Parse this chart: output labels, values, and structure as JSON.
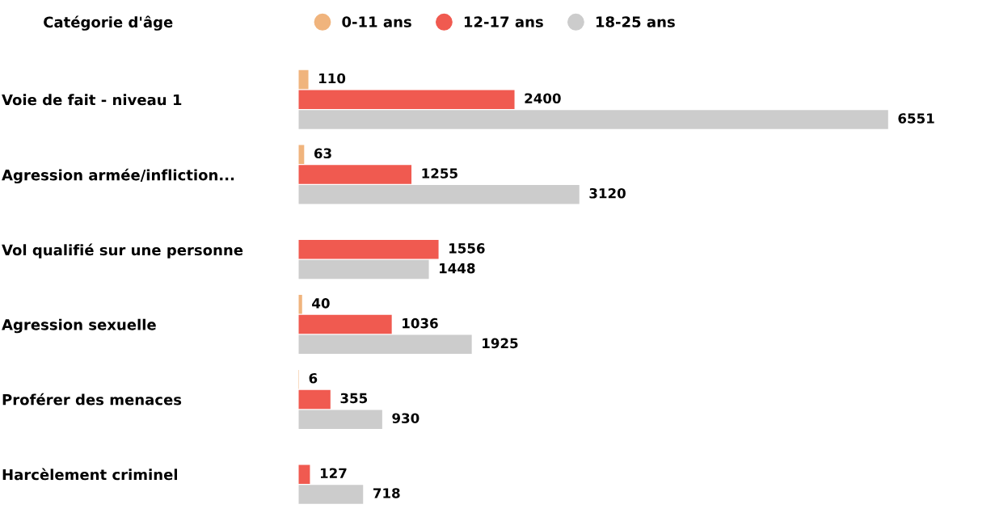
{
  "chart_data": {
    "type": "bar",
    "orientation": "horizontal",
    "legend_title": "Catégorie d'âge",
    "legend": "top",
    "tick_labels": "y",
    "grid": false,
    "data_labels": true,
    "marker": "circle",
    "categories": [
      "Voie de fait - niveau 1",
      "Agression armée/infliction...",
      "Vol qualifié sur une personne",
      "Agression sexuelle",
      "Proférer des menaces",
      "Harcèlement criminel"
    ],
    "series": [
      {
        "name": "0-11 ans",
        "color": "#f0b47d",
        "values": [
          110,
          63,
          null,
          40,
          6,
          null
        ]
      },
      {
        "name": "12-17 ans",
        "color": "#f05a50",
        "values": [
          2400,
          1255,
          1556,
          1036,
          355,
          127
        ]
      },
      {
        "name": "18-25 ans",
        "color": "#cccccc",
        "values": [
          6551,
          3120,
          1448,
          1925,
          930,
          718
        ]
      }
    ]
  }
}
